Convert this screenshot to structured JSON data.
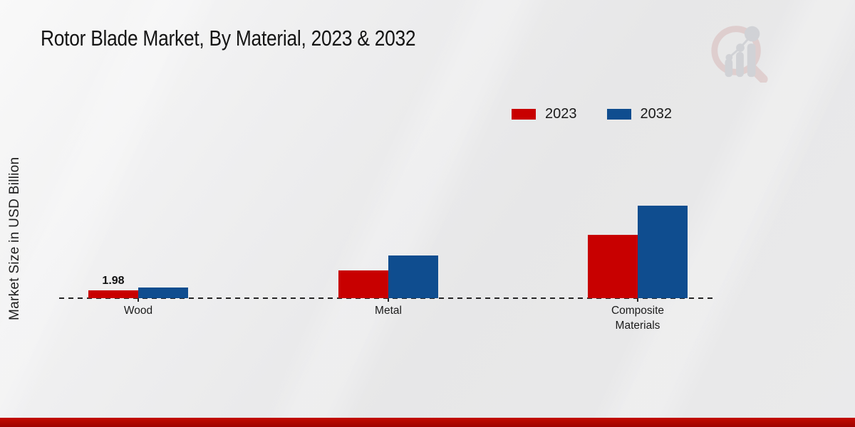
{
  "header": {
    "title": "Rotor Blade Market, By Material, 2023 & 2032"
  },
  "chart_data": {
    "type": "bar",
    "title": "Rotor Blade Market, By Material, 2023 & 2032",
    "xlabel": "",
    "ylabel": "Market Size in USD Billion",
    "categories": [
      "Wood",
      "Metal",
      "Composite Materials"
    ],
    "series": [
      {
        "name": "2023",
        "color": "#c80000",
        "values": [
          1.98,
          7.2,
          16.5
        ]
      },
      {
        "name": "2032",
        "color": "#0f4d8f",
        "values": [
          2.7,
          11.1,
          24.1
        ]
      }
    ],
    "value_annotations": [
      {
        "series": "2023",
        "category": "Wood",
        "text": "1.98"
      }
    ],
    "ylim": [
      0,
      26
    ],
    "grid": false,
    "axis_line_style": "dashed",
    "legend_position": "top-right"
  },
  "branding": {
    "logo_name": "market-research-future-logo",
    "footer_bar_color": "#b00500"
  }
}
